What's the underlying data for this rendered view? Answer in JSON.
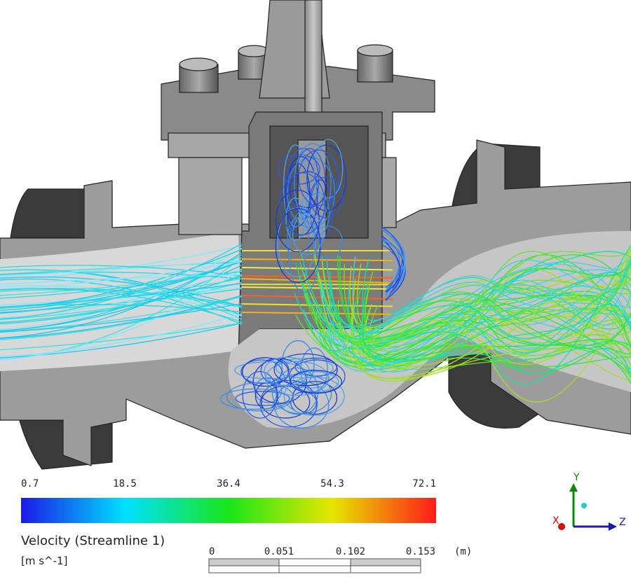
{
  "colorbar": {
    "title": "Velocity (Streamline 1)",
    "units": "[m s^-1]",
    "ticks": [
      "0.7",
      "18.5",
      "36.4",
      "54.3",
      "72.1"
    ]
  },
  "scale_bar": {
    "ticks": [
      "0",
      "0.051",
      "0.102",
      "0.153"
    ],
    "unit": "(m)"
  },
  "axes_triad": {
    "y": "Y",
    "x": "X",
    "z": "Z"
  }
}
